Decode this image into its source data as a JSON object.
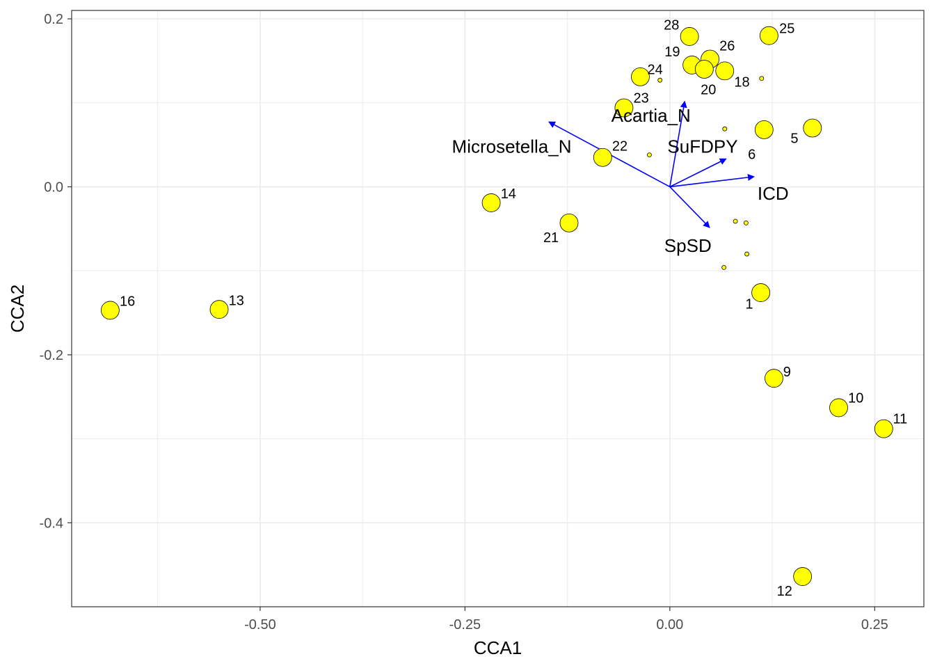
{
  "chart_data": {
    "type": "scatter",
    "xlabel": "CCA1",
    "ylabel": "CCA2",
    "xlim": [
      -0.73,
      0.31
    ],
    "ylim": [
      -0.5,
      0.21
    ],
    "x_ticks": [
      -0.5,
      -0.25,
      0.0,
      0.25
    ],
    "x_tick_labels": [
      "-0.50",
      "-0.25",
      "0.00",
      "0.25"
    ],
    "y_ticks": [
      0.2,
      0.0,
      -0.2,
      -0.4
    ],
    "y_tick_labels": [
      "0.2",
      "0.0",
      "-0.2",
      "-0.4"
    ],
    "grid": true,
    "colors": {
      "point_fill": "#ffff00",
      "point_stroke": "#000000",
      "arrow": "#0000ff",
      "grid": "#ebebeb"
    },
    "sites": [
      {
        "label": "28",
        "x": 0.024,
        "y": 0.179,
        "ldx": -0.022,
        "ldy": 0.014
      },
      {
        "label": "25",
        "x": 0.121,
        "y": 0.18,
        "ldx": 0.022,
        "ldy": 0.009
      },
      {
        "label": "19",
        "x": 0.027,
        "y": 0.145,
        "ldx": -0.024,
        "ldy": 0.016
      },
      {
        "label": "26",
        "x": 0.049,
        "y": 0.152,
        "ldx": 0.021,
        "ldy": 0.016
      },
      {
        "label": "20",
        "x": 0.042,
        "y": 0.14,
        "ldx": 0.005,
        "ldy": -0.024
      },
      {
        "label": "18",
        "x": 0.067,
        "y": 0.138,
        "ldx": 0.021,
        "ldy": -0.013
      },
      {
        "label": "24",
        "x": -0.036,
        "y": 0.131,
        "ldx": 0.018,
        "ldy": 0.009
      },
      {
        "label": "23",
        "x": -0.056,
        "y": 0.094,
        "ldx": 0.021,
        "ldy": 0.012
      },
      {
        "label": "6",
        "x": 0.115,
        "y": 0.068,
        "ldx": -0.015,
        "ldy": -0.029
      },
      {
        "label": "5",
        "x": 0.174,
        "y": 0.07,
        "ldx": -0.022,
        "ldy": -0.012
      },
      {
        "label": "22",
        "x": -0.082,
        "y": 0.035,
        "ldx": 0.021,
        "ldy": 0.014
      },
      {
        "label": "14",
        "x": -0.218,
        "y": -0.019,
        "ldx": 0.021,
        "ldy": 0.011
      },
      {
        "label": "21",
        "x": -0.123,
        "y": -0.043,
        "ldx": -0.022,
        "ldy": -0.017
      },
      {
        "label": "16",
        "x": -0.683,
        "y": -0.147,
        "ldx": 0.021,
        "ldy": 0.011
      },
      {
        "label": "13",
        "x": -0.55,
        "y": -0.146,
        "ldx": 0.021,
        "ldy": 0.011
      },
      {
        "label": "1",
        "x": 0.111,
        "y": -0.126,
        "ldx": -0.014,
        "ldy": -0.013
      },
      {
        "label": "9",
        "x": 0.127,
        "y": -0.228,
        "ldx": 0.016,
        "ldy": 0.008
      },
      {
        "label": "10",
        "x": 0.206,
        "y": -0.263,
        "ldx": 0.021,
        "ldy": 0.012
      },
      {
        "label": "11",
        "x": 0.261,
        "y": -0.288,
        "ldx": 0.02,
        "ldy": 0.012
      },
      {
        "label": "12",
        "x": 0.162,
        "y": -0.464,
        "ldx": -0.022,
        "ldy": -0.017
      }
    ],
    "species_points": [
      {
        "x": -0.012,
        "y": 0.127
      },
      {
        "x": 0.112,
        "y": 0.129
      },
      {
        "x": 0.067,
        "y": 0.069
      },
      {
        "x": -0.025,
        "y": 0.038
      },
      {
        "x": 0.08,
        "y": -0.041
      },
      {
        "x": 0.093,
        "y": -0.043
      },
      {
        "x": 0.094,
        "y": -0.08
      },
      {
        "x": 0.066,
        "y": -0.096
      }
    ],
    "vectors": [
      {
        "label": "Acartia_N",
        "x": 0.018,
        "y": 0.101,
        "lx": -0.023,
        "ly": 0.085,
        "anchor": "middle"
      },
      {
        "label": "Microsetella_N",
        "x": -0.147,
        "y": 0.077,
        "lx": -0.193,
        "ly": 0.048,
        "anchor": "middle"
      },
      {
        "label": "SuFDPY",
        "x": 0.068,
        "y": 0.033,
        "lx": 0.04,
        "ly": 0.048,
        "anchor": "middle"
      },
      {
        "label": "ICD",
        "x": 0.102,
        "y": 0.012,
        "lx": 0.126,
        "ly": -0.008,
        "anchor": "middle"
      },
      {
        "label": "SpSD",
        "x": 0.048,
        "y": -0.048,
        "lx": 0.022,
        "ly": -0.07,
        "anchor": "middle"
      }
    ]
  }
}
